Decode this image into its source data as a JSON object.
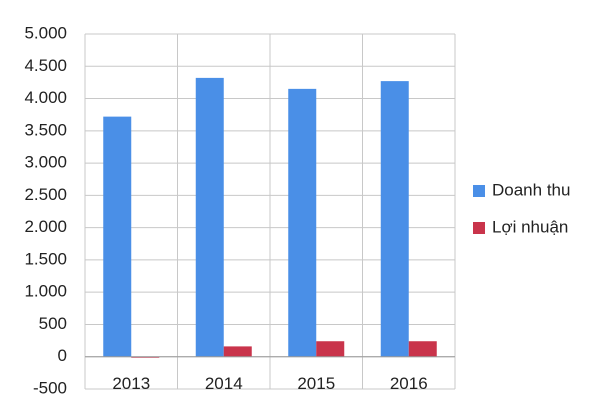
{
  "chart_data": {
    "type": "bar",
    "categories": [
      "2013",
      "2014",
      "2015",
      "2016"
    ],
    "series": [
      {
        "name": "Doanh thu",
        "color": "#4a8fe7",
        "values": [
          3720,
          4320,
          4150,
          4270
        ]
      },
      {
        "name": "Lợi nhuận",
        "color": "#c9344b",
        "values": [
          -10,
          160,
          240,
          240
        ]
      }
    ],
    "ylim": [
      -500,
      5000
    ],
    "yticks": [
      -500,
      0,
      500,
      {
        "value": 1000,
        "label": "1.000"
      },
      {
        "value": 1500,
        "label": "1.500"
      },
      {
        "value": 2000,
        "label": "2.000"
      },
      {
        "value": 2500,
        "label": "2.500"
      },
      {
        "value": 3000,
        "label": "3.000"
      },
      {
        "value": 3500,
        "label": "3.500"
      },
      {
        "value": 4000,
        "label": "4.000"
      },
      {
        "value": 4500,
        "label": "4.500"
      },
      {
        "value": 5000,
        "label": "5.000"
      }
    ],
    "grid": true,
    "legend": "right"
  }
}
